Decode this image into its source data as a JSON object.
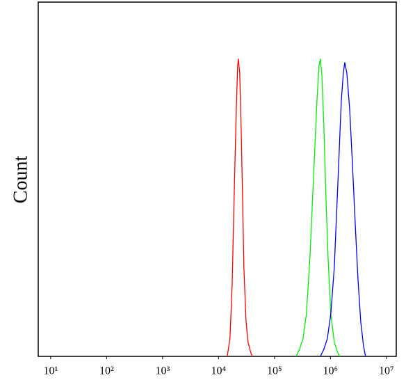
{
  "chart_data": {
    "type": "line",
    "y_label": "Count",
    "log_x": true,
    "xlim": [
      6,
      15000000
    ],
    "ylim": [
      0,
      100
    ],
    "xticks": [
      {
        "value": 10,
        "label": "10¹"
      },
      {
        "value": 100,
        "label": "10²"
      },
      {
        "value": 1000,
        "label": "10³"
      },
      {
        "value": 10000,
        "label": "10⁴"
      },
      {
        "value": 100000,
        "label": "10⁵"
      },
      {
        "value": 1000000,
        "label": "10⁶"
      },
      {
        "value": 10000000,
        "label": "10⁷"
      }
    ],
    "series": [
      {
        "color": "#ff0000",
        "x": [
          14300,
          16000,
          17500,
          19000,
          20800,
          22000,
          22600,
          23900,
          25300,
          26900,
          28400,
          31000,
          33700,
          37800,
          40000
        ],
        "values": [
          0,
          5,
          20,
          45,
          70,
          82,
          84,
          80,
          65,
          45,
          25,
          10,
          4,
          1,
          0
        ]
      },
      {
        "color": "#00ee00",
        "x": [
          243000,
          280000,
          323000,
          372000,
          430000,
          497000,
          573000,
          624000,
          661000,
          700000,
          762000,
          830000,
          906000,
          1015000,
          1170000,
          1350000,
          1470000
        ],
        "values": [
          0,
          2,
          5,
          12,
          28,
          50,
          72,
          82,
          84,
          80,
          65,
          45,
          28,
          12,
          4,
          1,
          0
        ]
      },
      {
        "color": "#0000ff",
        "x": [
          661000,
          762000,
          879000,
          1015000,
          1170000,
          1350000,
          1560000,
          1700000,
          1800000,
          1960000,
          2200000,
          2460000,
          2760000,
          3100000,
          3470000,
          3890000,
          4240000
        ],
        "values": [
          0,
          2,
          5,
          12,
          25,
          48,
          72,
          80,
          83,
          80,
          70,
          55,
          38,
          22,
          10,
          3,
          0
        ]
      }
    ]
  }
}
